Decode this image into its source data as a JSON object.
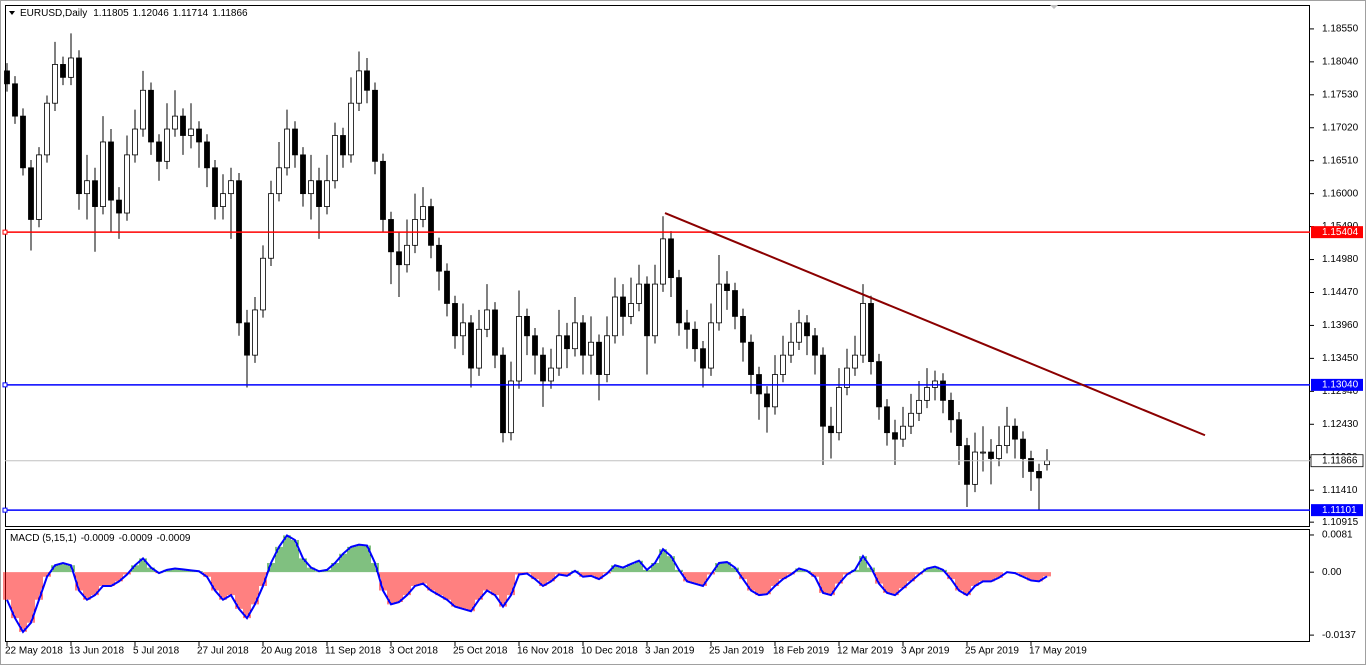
{
  "chart_data": {
    "type": "candlestick",
    "symbol": "EURUSD,Daily",
    "xlim": [
      -0.25,
      162.875
    ],
    "ylim": [
      1.1084,
      1.1892
    ],
    "xticks": [
      {
        "value": 0,
        "label": "22 May 2018"
      },
      {
        "value": 8,
        "label": "13 Jun 2018"
      },
      {
        "value": 16,
        "label": "5 Jul 2018"
      },
      {
        "value": 24,
        "label": "27 Jul 2018"
      },
      {
        "value": 32,
        "label": "20 Aug 2018"
      },
      {
        "value": 40,
        "label": "11 Sep 2018"
      },
      {
        "value": 48,
        "label": "3 Oct 2018"
      },
      {
        "value": 56,
        "label": "25 Oct 2018"
      },
      {
        "value": 64,
        "label": "16 Nov 2018"
      },
      {
        "value": 72,
        "label": "10 Dec 2018"
      },
      {
        "value": 80,
        "label": "3 Jan 2019"
      },
      {
        "value": 88,
        "label": "25 Jan 2019"
      },
      {
        "value": 96,
        "label": "18 Feb 2019"
      },
      {
        "value": 104,
        "label": "12 Mar 2019"
      },
      {
        "value": 112,
        "label": "3 Apr 2019"
      },
      {
        "value": 120,
        "label": "25 Apr 2019"
      },
      {
        "value": 128,
        "label": "17 May 2019"
      }
    ],
    "yticks": [
      {
        "value": 1.1855,
        "label": "1.18550"
      },
      {
        "value": 1.1804,
        "label": "1.18040"
      },
      {
        "value": 1.1753,
        "label": "1.17530"
      },
      {
        "value": 1.1702,
        "label": "1.17020"
      },
      {
        "value": 1.1651,
        "label": "1.16510"
      },
      {
        "value": 1.16,
        "label": "1.16000"
      },
      {
        "value": 1.1549,
        "label": "1.15490"
      },
      {
        "value": 1.1498,
        "label": "1.14980"
      },
      {
        "value": 1.1447,
        "label": "1.14470"
      },
      {
        "value": 1.1396,
        "label": "1.13960"
      },
      {
        "value": 1.1345,
        "label": "1.13450"
      },
      {
        "value": 1.1294,
        "label": "1.12940"
      },
      {
        "value": 1.1243,
        "label": "1.12430"
      },
      {
        "value": 1.1192,
        "label": "1.11920"
      },
      {
        "value": 1.1141,
        "label": "1.11410"
      },
      1.10915
    ],
    "candles": [
      [
        1.179,
        1.1802,
        1.1758,
        1.177
      ],
      [
        1.177,
        1.1782,
        1.1708,
        1.172
      ],
      [
        1.172,
        1.1732,
        1.1628,
        1.164
      ],
      [
        1.164,
        1.1652,
        1.1512,
        1.156
      ],
      [
        1.156,
        1.1672,
        1.1548,
        1.166
      ],
      [
        1.166,
        1.1752,
        1.1648,
        1.174
      ],
      [
        1.174,
        1.1835,
        1.1728,
        1.18
      ],
      [
        1.18,
        1.1812,
        1.1768,
        1.178
      ],
      [
        1.178,
        1.1848,
        1.1768,
        1.181
      ],
      [
        1.181,
        1.1822,
        1.1575,
        1.16
      ],
      [
        1.16,
        1.166,
        1.156,
        1.162
      ],
      [
        1.162,
        1.164,
        1.151,
        1.158
      ],
      [
        1.158,
        1.172,
        1.1568,
        1.168
      ],
      [
        1.168,
        1.17,
        1.154,
        1.159
      ],
      [
        1.159,
        1.161,
        1.153,
        1.157
      ],
      [
        1.157,
        1.169,
        1.1558,
        1.166
      ],
      [
        1.166,
        1.173,
        1.1648,
        1.17
      ],
      [
        1.17,
        1.179,
        1.1688,
        1.176
      ],
      [
        1.176,
        1.1772,
        1.166,
        1.168
      ],
      [
        1.168,
        1.1692,
        1.162,
        1.165
      ],
      [
        1.165,
        1.174,
        1.1638,
        1.17
      ],
      [
        1.17,
        1.176,
        1.1688,
        1.172
      ],
      [
        1.172,
        1.1732,
        1.166,
        1.169
      ],
      [
        1.169,
        1.174,
        1.167,
        1.17
      ],
      [
        1.17,
        1.1712,
        1.164,
        1.168
      ],
      [
        1.168,
        1.1692,
        1.161,
        1.164
      ],
      [
        1.164,
        1.1652,
        1.156,
        1.158
      ],
      [
        1.158,
        1.163,
        1.156,
        1.16
      ],
      [
        1.16,
        1.164,
        1.153,
        1.162
      ],
      [
        1.162,
        1.1632,
        1.138,
        1.14
      ],
      [
        1.14,
        1.142,
        1.13,
        1.135
      ],
      [
        1.135,
        1.144,
        1.1338,
        1.142
      ],
      [
        1.142,
        1.152,
        1.1408,
        1.15
      ],
      [
        1.15,
        1.162,
        1.1488,
        1.16
      ],
      [
        1.16,
        1.168,
        1.1588,
        1.164
      ],
      [
        1.164,
        1.173,
        1.1628,
        1.17
      ],
      [
        1.17,
        1.1712,
        1.164,
        1.166
      ],
      [
        1.166,
        1.1672,
        1.158,
        1.16
      ],
      [
        1.16,
        1.166,
        1.156,
        1.162
      ],
      [
        1.162,
        1.164,
        1.153,
        1.158
      ],
      [
        1.158,
        1.166,
        1.1568,
        1.162
      ],
      [
        1.162,
        1.171,
        1.1608,
        1.169
      ],
      [
        1.169,
        1.1702,
        1.164,
        1.166
      ],
      [
        1.166,
        1.178,
        1.1648,
        1.174
      ],
      [
        1.174,
        1.182,
        1.1728,
        1.179
      ],
      [
        1.179,
        1.181,
        1.174,
        1.176
      ],
      [
        1.176,
        1.1772,
        1.163,
        1.165
      ],
      [
        1.165,
        1.1662,
        1.154,
        1.156
      ],
      [
        1.156,
        1.1572,
        1.146,
        1.151
      ],
      [
        1.151,
        1.154,
        1.144,
        1.149
      ],
      [
        1.149,
        1.156,
        1.1478,
        1.152
      ],
      [
        1.152,
        1.16,
        1.1508,
        1.156
      ],
      [
        1.156,
        1.161,
        1.1548,
        1.158
      ],
      [
        1.158,
        1.1592,
        1.15,
        1.152
      ],
      [
        1.152,
        1.1532,
        1.145,
        1.148
      ],
      [
        1.148,
        1.1492,
        1.141,
        1.143
      ],
      [
        1.143,
        1.1442,
        1.136,
        1.138
      ],
      [
        1.138,
        1.143,
        1.135,
        1.14
      ],
      [
        1.14,
        1.1412,
        1.13,
        1.133
      ],
      [
        1.133,
        1.142,
        1.1318,
        1.139
      ],
      [
        1.139,
        1.146,
        1.1378,
        1.142
      ],
      [
        1.142,
        1.1432,
        1.133,
        1.135
      ],
      [
        1.135,
        1.1362,
        1.1215,
        1.123
      ],
      [
        1.123,
        1.134,
        1.1218,
        1.131
      ],
      [
        1.131,
        1.145,
        1.1298,
        1.141
      ],
      [
        1.141,
        1.1422,
        1.135,
        1.138
      ],
      [
        1.138,
        1.1392,
        1.132,
        1.135
      ],
      [
        1.135,
        1.1362,
        1.127,
        1.131
      ],
      [
        1.131,
        1.136,
        1.1298,
        1.133
      ],
      [
        1.133,
        1.142,
        1.1318,
        1.138
      ],
      [
        1.138,
        1.14,
        1.133,
        1.136
      ],
      [
        1.136,
        1.144,
        1.1348,
        1.14
      ],
      [
        1.14,
        1.1412,
        1.132,
        1.135
      ],
      [
        1.135,
        1.141,
        1.132,
        1.137
      ],
      [
        1.137,
        1.1382,
        1.128,
        1.132
      ],
      [
        1.132,
        1.141,
        1.1308,
        1.138
      ],
      [
        1.138,
        1.147,
        1.1368,
        1.144
      ],
      [
        1.144,
        1.146,
        1.138,
        1.141
      ],
      [
        1.141,
        1.147,
        1.1398,
        1.143
      ],
      [
        1.143,
        1.149,
        1.1418,
        1.146
      ],
      [
        1.146,
        1.1472,
        1.132,
        1.138
      ],
      [
        1.138,
        1.149,
        1.1368,
        1.146
      ],
      [
        1.146,
        1.1565,
        1.1448,
        1.153
      ],
      [
        1.153,
        1.1542,
        1.144,
        1.147
      ],
      [
        1.147,
        1.1482,
        1.138,
        1.14
      ],
      [
        1.14,
        1.142,
        1.136,
        1.139
      ],
      [
        1.139,
        1.1402,
        1.134,
        1.136
      ],
      [
        1.136,
        1.1372,
        1.13,
        1.133
      ],
      [
        1.133,
        1.143,
        1.1318,
        1.14
      ],
      [
        1.14,
        1.1505,
        1.1388,
        1.146
      ],
      [
        1.146,
        1.148,
        1.142,
        1.145
      ],
      [
        1.145,
        1.1462,
        1.139,
        1.141
      ],
      [
        1.141,
        1.1422,
        1.134,
        1.137
      ],
      [
        1.137,
        1.1382,
        1.129,
        1.132
      ],
      [
        1.132,
        1.1332,
        1.125,
        1.129
      ],
      [
        1.129,
        1.1302,
        1.123,
        1.127
      ],
      [
        1.127,
        1.135,
        1.1258,
        1.132
      ],
      [
        1.132,
        1.138,
        1.1308,
        1.135
      ],
      [
        1.135,
        1.14,
        1.1338,
        1.137
      ],
      [
        1.137,
        1.142,
        1.1358,
        1.14
      ],
      [
        1.14,
        1.1412,
        1.135,
        1.138
      ],
      [
        1.138,
        1.1392,
        1.132,
        1.135
      ],
      [
        1.135,
        1.1362,
        1.118,
        1.124
      ],
      [
        1.124,
        1.127,
        1.119,
        1.123
      ],
      [
        1.123,
        1.133,
        1.1218,
        1.13
      ],
      [
        1.13,
        1.136,
        1.1288,
        1.133
      ],
      [
        1.133,
        1.138,
        1.1318,
        1.135
      ],
      [
        1.135,
        1.146,
        1.1338,
        1.143
      ],
      [
        1.143,
        1.1442,
        1.132,
        1.134
      ],
      [
        1.134,
        1.1352,
        1.125,
        1.127
      ],
      [
        1.127,
        1.1282,
        1.121,
        1.123
      ],
      [
        1.123,
        1.125,
        1.118,
        1.122
      ],
      [
        1.122,
        1.127,
        1.1208,
        1.124
      ],
      [
        1.124,
        1.129,
        1.1228,
        1.126
      ],
      [
        1.126,
        1.131,
        1.1248,
        1.128
      ],
      [
        1.128,
        1.133,
        1.1268,
        1.13
      ],
      [
        1.13,
        1.1326,
        1.128,
        1.131
      ],
      [
        1.131,
        1.1322,
        1.126,
        1.128
      ],
      [
        1.128,
        1.1292,
        1.123,
        1.125
      ],
      [
        1.125,
        1.1262,
        1.118,
        1.121
      ],
      [
        1.121,
        1.1222,
        1.1115,
        1.115
      ],
      [
        1.115,
        1.123,
        1.1138,
        1.12
      ],
      [
        1.12,
        1.124,
        1.117,
        1.12
      ],
      [
        1.12,
        1.122,
        1.115,
        1.119
      ],
      [
        1.119,
        1.124,
        1.1178,
        1.121
      ],
      [
        1.121,
        1.127,
        1.1198,
        1.124
      ],
      [
        1.124,
        1.1252,
        1.119,
        1.122
      ],
      [
        1.122,
        1.1232,
        1.116,
        1.119
      ],
      [
        1.119,
        1.1202,
        1.114,
        1.117
      ],
      [
        1.117,
        1.1182,
        1.111,
        1.116
      ],
      [
        1.11805,
        1.12046,
        1.11714,
        1.11866
      ]
    ],
    "levels": [
      {
        "value": 1.15404,
        "color": "#ff0000"
      },
      {
        "value": 1.1304,
        "label": "1.13040",
        "color": "#0000ff"
      },
      {
        "value": 1.11101,
        "color": "#0000ff"
      }
    ],
    "trendline": {
      "x": [
        82.25,
        149.75
      ],
      "y": [
        1.157,
        1.1226
      ],
      "color": "#8b0000"
    },
    "macd": {
      "type": "histogram",
      "title": "MACD (5,15,1)",
      "ylim": [
        -0.0152,
        0.0094
      ],
      "yticks": [
        0.0081,
        {
          "value": 0,
          "label": "0.00"
        },
        -0.0137
      ],
      "up_color": "#008000",
      "down_color": "#ff0000",
      "line_color": "#0000ff",
      "values": [
        -0.006,
        -0.01,
        -0.013,
        -0.011,
        -0.006,
        -0.001,
        0.0015,
        0.002,
        0.0015,
        -0.004,
        -0.006,
        -0.005,
        -0.003,
        -0.003,
        -0.002,
        -0.0005,
        0.0015,
        0.003,
        0.001,
        -0.0002,
        0.0005,
        0.0008,
        0.0006,
        0.0004,
        0.0002,
        -0.001,
        -0.004,
        -0.006,
        -0.005,
        -0.008,
        -0.01,
        -0.007,
        -0.003,
        0.002,
        0.0055,
        0.008,
        0.007,
        0.003,
        0.001,
        0.0002,
        0.0005,
        0.002,
        0.004,
        0.0055,
        0.006,
        0.0058,
        0.002,
        -0.004,
        -0.007,
        -0.0065,
        -0.005,
        -0.003,
        -0.0025,
        -0.004,
        -0.005,
        -0.006,
        -0.0075,
        -0.008,
        -0.0085,
        -0.006,
        -0.004,
        -0.005,
        -0.0075,
        -0.005,
        -0.0005,
        -0.0003,
        -0.0015,
        -0.003,
        -0.002,
        -0.0005,
        -0.0008,
        0.0003,
        -0.001,
        -0.0008,
        -0.0015,
        -0.0003,
        0.0015,
        0.001,
        0.0018,
        0.0025,
        0.0005,
        0.002,
        0.005,
        0.0035,
        0.0005,
        -0.002,
        -0.0025,
        -0.003,
        -0.0005,
        0.002,
        0.0022,
        0.001,
        -0.0015,
        -0.004,
        -0.005,
        -0.0048,
        -0.003,
        -0.0015,
        -0.0005,
        0.0008,
        0.0003,
        -0.001,
        -0.0045,
        -0.005,
        -0.0025,
        -0.0005,
        0.0005,
        0.0035,
        0.001,
        -0.0025,
        -0.0045,
        -0.005,
        -0.0035,
        -0.002,
        -0.0005,
        0.0008,
        0.0012,
        0.0005,
        -0.0015,
        -0.004,
        -0.005,
        -0.003,
        -0.002,
        -0.002,
        -0.0012,
        0,
        -0.0002,
        -0.001,
        -0.0018,
        -0.002,
        -0.0009
      ]
    }
  }
}
